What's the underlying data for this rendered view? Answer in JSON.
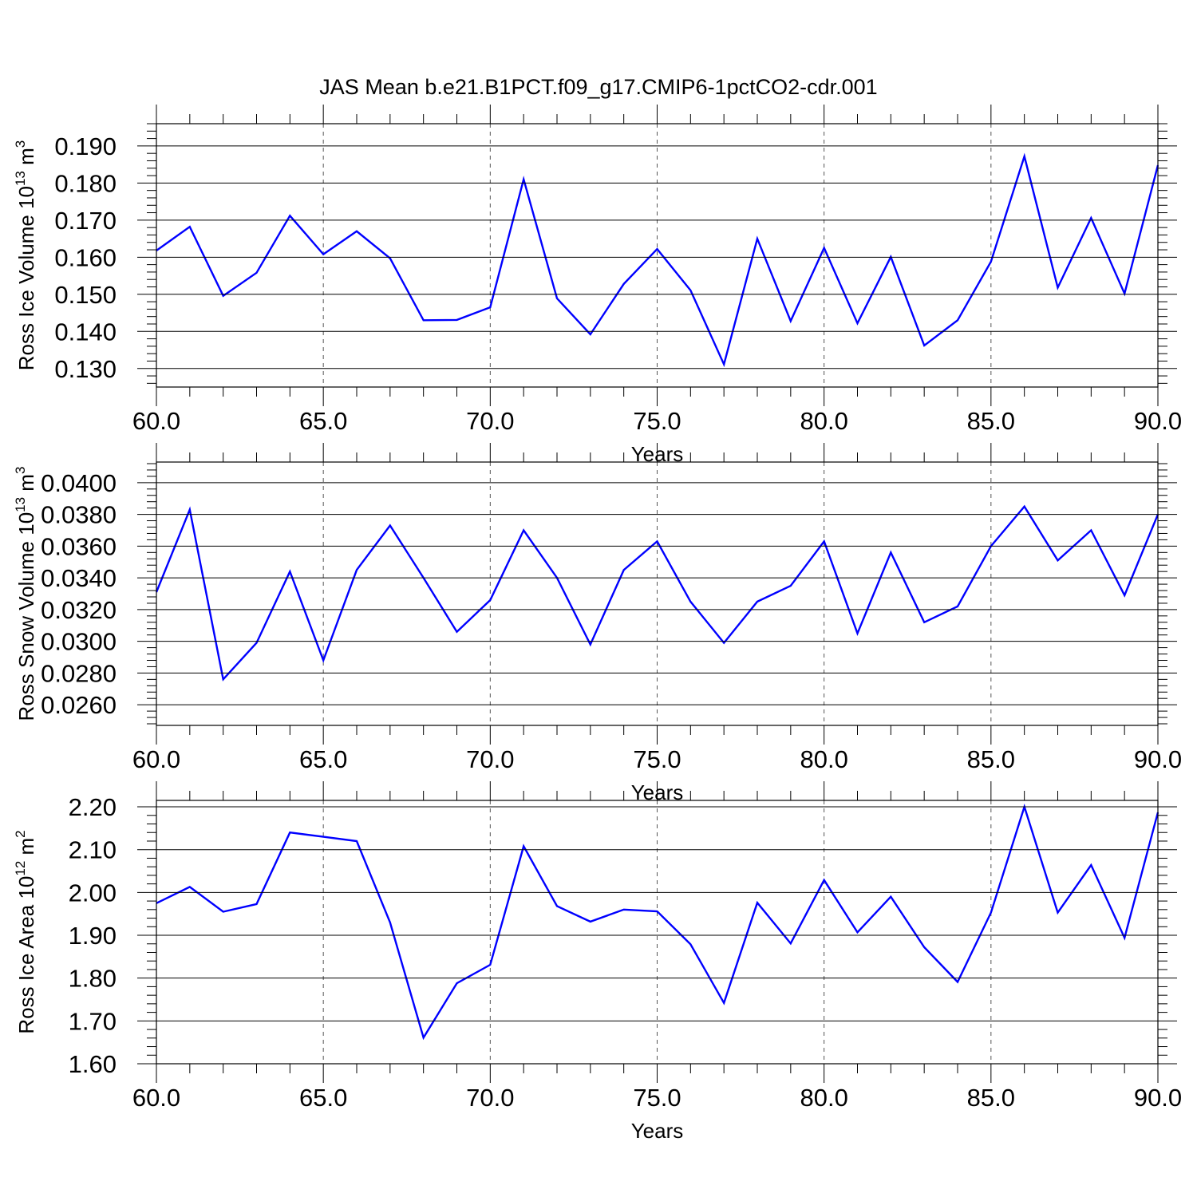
{
  "title": "JAS Mean b.e21.B1PCT.f09_g17.CMIP6-1pctCO2-cdr.001",
  "colors": {
    "line": "#0000ff",
    "axis": "#000000",
    "grid": "#555555"
  },
  "chart_data": [
    {
      "type": "line",
      "ylabel_main": "Ross Ice Volume 10",
      "ylabel_exp": "13",
      "ylabel_unit": " m",
      "ylabel_unit_exp": "3",
      "xlabel": "Years",
      "xlim": [
        60,
        90
      ],
      "ylim": [
        0.125,
        0.196
      ],
      "x_ticks": [
        60,
        65,
        70,
        75,
        80,
        85,
        90
      ],
      "x_tick_labels": [
        "60.0",
        "65.0",
        "70.0",
        "75.0",
        "80.0",
        "85.0",
        "90.0"
      ],
      "y_ticks": [
        0.13,
        0.14,
        0.15,
        0.16,
        0.17,
        0.18,
        0.19
      ],
      "y_tick_labels": [
        "0.130",
        "0.140",
        "0.150",
        "0.160",
        "0.170",
        "0.180",
        "0.190"
      ],
      "grid": "dashed vertical at major x ticks",
      "x": [
        60,
        61,
        62,
        63,
        64,
        65,
        66,
        67,
        68,
        69,
        70,
        71,
        72,
        73,
        74,
        75,
        76,
        77,
        78,
        79,
        80,
        81,
        82,
        83,
        84,
        85,
        86,
        87,
        88,
        89,
        90
      ],
      "values": [
        0.1618,
        0.1682,
        0.1496,
        0.1558,
        0.1712,
        0.1608,
        0.167,
        0.1597,
        0.143,
        0.1431,
        0.1465,
        0.181,
        0.1489,
        0.1392,
        0.1528,
        0.1622,
        0.1511,
        0.1311,
        0.165,
        0.1428,
        0.1625,
        0.1422,
        0.1601,
        0.1362,
        0.143,
        0.1588,
        0.1872,
        0.1518,
        0.1706,
        0.1502,
        0.1848
      ]
    },
    {
      "type": "line",
      "ylabel_main": "Ross Snow Volume 10",
      "ylabel_exp": "13",
      "ylabel_unit": " m",
      "ylabel_unit_exp": "3",
      "xlabel": "Years",
      "xlim": [
        60,
        90
      ],
      "ylim": [
        0.0247,
        0.0413
      ],
      "x_ticks": [
        60,
        65,
        70,
        75,
        80,
        85,
        90
      ],
      "x_tick_labels": [
        "60.0",
        "65.0",
        "70.0",
        "75.0",
        "80.0",
        "85.0",
        "90.0"
      ],
      "y_ticks": [
        0.026,
        0.028,
        0.03,
        0.032,
        0.034,
        0.036,
        0.038,
        0.04
      ],
      "y_tick_labels": [
        "0.0260",
        "0.0280",
        "0.0300",
        "0.0320",
        "0.0340",
        "0.0360",
        "0.0380",
        "0.0400"
      ],
      "grid": "dashed vertical at major x ticks",
      "x": [
        60,
        61,
        62,
        63,
        64,
        65,
        66,
        67,
        68,
        69,
        70,
        71,
        72,
        73,
        74,
        75,
        76,
        77,
        78,
        79,
        80,
        81,
        82,
        83,
        84,
        85,
        86,
        87,
        88,
        89,
        90
      ],
      "values": [
        0.0331,
        0.0383,
        0.0276,
        0.0299,
        0.0344,
        0.0288,
        0.0345,
        0.0373,
        0.034,
        0.0306,
        0.0326,
        0.037,
        0.034,
        0.0298,
        0.0345,
        0.0363,
        0.0325,
        0.0299,
        0.0325,
        0.0335,
        0.0363,
        0.0305,
        0.0356,
        0.0312,
        0.0322,
        0.036,
        0.0385,
        0.0351,
        0.037,
        0.0329,
        0.038
      ]
    },
    {
      "type": "line",
      "ylabel_main": "Ross Ice Area 10",
      "ylabel_exp": "12",
      "ylabel_unit": " m",
      "ylabel_unit_exp": "2",
      "xlabel": "Years",
      "xlim": [
        60,
        90
      ],
      "ylim": [
        1.6,
        2.215
      ],
      "x_ticks": [
        60,
        65,
        70,
        75,
        80,
        85,
        90
      ],
      "x_tick_labels": [
        "60.0",
        "65.0",
        "70.0",
        "75.0",
        "80.0",
        "85.0",
        "90.0"
      ],
      "y_ticks": [
        1.6,
        1.7,
        1.8,
        1.9,
        2.0,
        2.1,
        2.2
      ],
      "y_tick_labels": [
        "1.60",
        "1.70",
        "1.80",
        "1.90",
        "2.00",
        "2.10",
        "2.20"
      ],
      "grid": "dashed vertical at major x ticks",
      "x": [
        60,
        61,
        62,
        63,
        64,
        65,
        66,
        67,
        68,
        69,
        70,
        71,
        72,
        73,
        74,
        75,
        76,
        77,
        78,
        79,
        80,
        81,
        82,
        83,
        84,
        85,
        86,
        87,
        88,
        89,
        90
      ],
      "values": [
        1.975,
        2.013,
        1.955,
        1.973,
        2.14,
        2.13,
        2.12,
        1.93,
        1.661,
        1.788,
        1.831,
        2.108,
        1.968,
        1.932,
        1.96,
        1.956,
        1.879,
        1.742,
        1.976,
        1.881,
        2.029,
        1.907,
        1.99,
        1.872,
        1.791,
        1.953,
        2.2,
        1.953,
        2.064,
        1.894,
        2.187
      ]
    }
  ]
}
